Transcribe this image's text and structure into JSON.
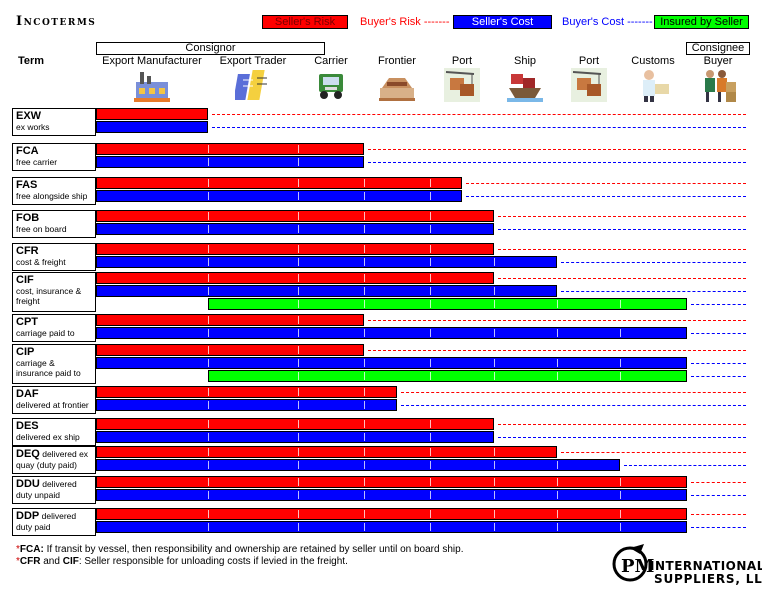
{
  "title": "Incoterms",
  "legend": {
    "seller_risk": "Seller's Risk",
    "buyer_risk": "Buyer's Risk -------",
    "seller_cost": "Seller's Cost",
    "buyer_cost": "Buyer's Cost -------",
    "insured_by_seller": "Insured by Seller"
  },
  "colors": {
    "red": "#ff0000",
    "blue": "#0000ff",
    "green": "#00ff00"
  },
  "groups": {
    "consignor": "Consignor",
    "consignee": "Consignee"
  },
  "term_header": "Term",
  "columns": [
    "Export Manufacturer",
    "Export Trader",
    "Carrier",
    "Frontier",
    "Port",
    "Ship",
    "Port",
    "Customs",
    "Buyer"
  ],
  "column_icons": [
    "factory-icon",
    "office-buildings-icon",
    "truck-icon",
    "border-crossing-icon",
    "port-cargo-icon",
    "ship-cargo-icon",
    "port-cargo-icon",
    "customs-officer-icon",
    "buyer-boxes-icon"
  ],
  "terms": [
    {
      "code": "EXW",
      "desc": "ex works",
      "seller_risk_until": 1,
      "seller_cost_until": 1
    },
    {
      "code": "FCA",
      "desc": "free carrier",
      "seller_risk_until": 3,
      "seller_cost_until": 3
    },
    {
      "code": "FAS",
      "desc": "free alongside ship",
      "seller_risk_until": 4.5,
      "seller_cost_until": 4.5
    },
    {
      "code": "FOB",
      "desc": "free on board",
      "seller_risk_until": 5,
      "seller_cost_until": 5
    },
    {
      "code": "CFR",
      "desc": "cost & freight",
      "seller_risk_until": 5,
      "seller_cost_until": 6
    },
    {
      "code": "CIF",
      "desc": "cost, insurance & freight",
      "seller_risk_until": 5,
      "seller_cost_until": 6,
      "insured_range": [
        1,
        8
      ]
    },
    {
      "code": "CPT",
      "desc": "carriage paid to",
      "seller_risk_until": 3,
      "seller_cost_until": 8
    },
    {
      "code": "CIP",
      "desc": "carriage & insurance paid to",
      "seller_risk_until": 3,
      "seller_cost_until": 8,
      "insured_range": [
        1,
        8
      ]
    },
    {
      "code": "DAF",
      "desc": "delivered at frontier",
      "seller_risk_until": 3.5,
      "seller_cost_until": 3.5
    },
    {
      "code": "DES",
      "desc": "delivered ex ship",
      "seller_risk_until": 5,
      "seller_cost_until": 5
    },
    {
      "code": "DEQ",
      "desc": "delivered ex quay (duty paid)",
      "inline": true,
      "seller_risk_until": 6,
      "seller_cost_until": 7
    },
    {
      "code": "DDU",
      "desc": "delivered duty unpaid",
      "inline": true,
      "seller_risk_until": 8,
      "seller_cost_until": 8
    },
    {
      "code": "DDP",
      "desc": "delivered duty paid",
      "inline": true,
      "seller_risk_until": 8,
      "seller_cost_until": 8
    }
  ],
  "footnotes": [
    {
      "mark": "*",
      "bold": "FCA:",
      "text": " If transit by vessel, then responsibility and ownership are retained by seller until on board ship."
    },
    {
      "mark": "*",
      "bold": "CFR",
      "mid": " and ",
      "bold2": "CIF",
      "text": ": Seller responsible for unloading costs if levied in the freight."
    }
  ],
  "logo": {
    "line1": "INTERNATIONAL",
    "line2": "SUPPLIERS, LLC",
    "mark": "PM"
  }
}
